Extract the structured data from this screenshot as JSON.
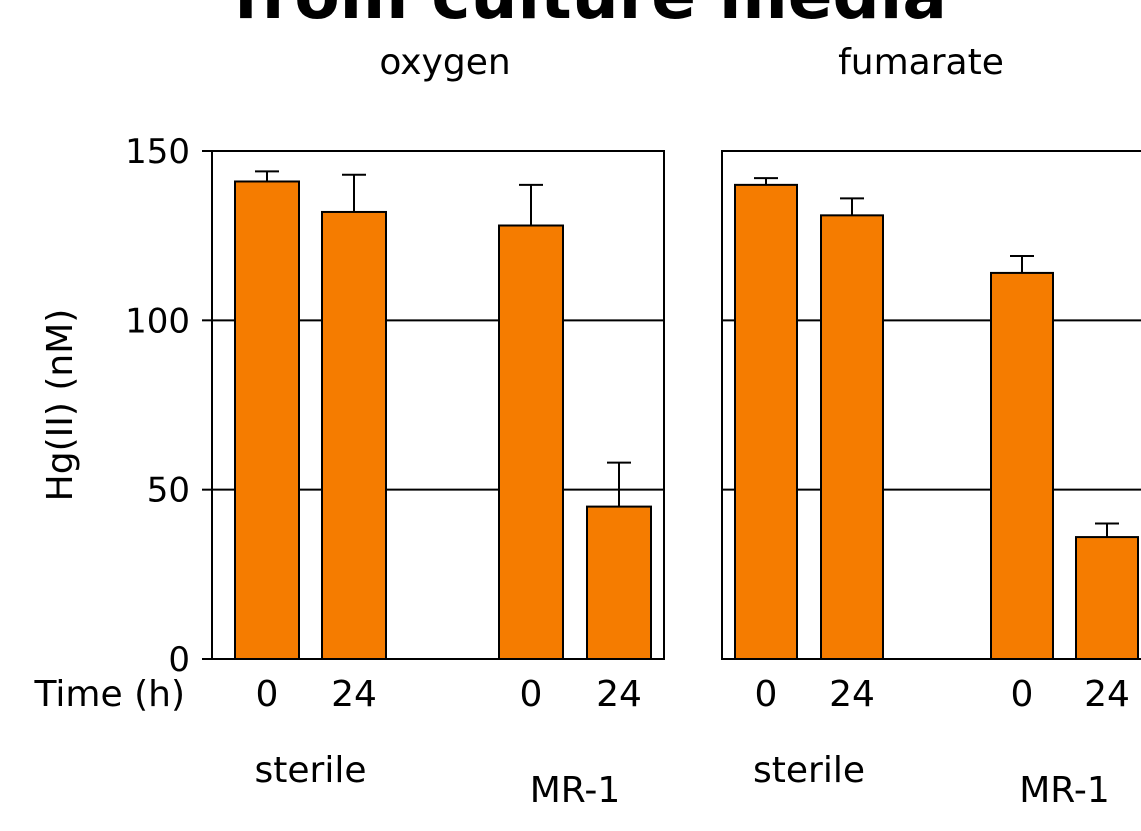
{
  "chart_data": [
    {
      "type": "bar",
      "title": "from culture media",
      "subtitle": "oxygen",
      "ylabel": "Hg(II) (nM)",
      "xlabel": "Time (h)",
      "ylim": [
        0,
        150
      ],
      "yticks": [
        0,
        50,
        100,
        150
      ],
      "grid": true,
      "categories": [
        "0",
        "24",
        "0",
        "24"
      ],
      "groups": [
        "sterile",
        "MR-1"
      ],
      "values": [
        141,
        132,
        128,
        45
      ],
      "errors": [
        3,
        11,
        12,
        13
      ],
      "color": "#f57c00"
    },
    {
      "type": "bar",
      "subtitle": "fumarate",
      "ylim": [
        0,
        150
      ],
      "grid": true,
      "categories": [
        "0",
        "24",
        "0",
        "24"
      ],
      "groups": [
        "sterile",
        "MR-1"
      ],
      "values": [
        140,
        131,
        114,
        36
      ],
      "errors": [
        2,
        5,
        5,
        4
      ],
      "color": "#f57c00"
    }
  ]
}
